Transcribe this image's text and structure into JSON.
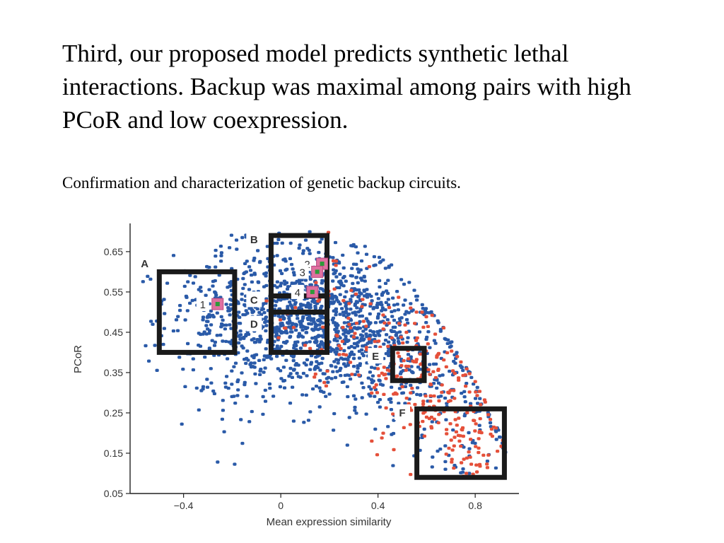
{
  "slide": {
    "title": "Third, our proposed model predicts synthetic lethal interactions. Backup was maximal among pairs with high PCoR and low coexpression.",
    "subtitle": "Confirmation and characterization of genetic backup circuits."
  },
  "colors": {
    "blue": "#2a5aa8",
    "red": "#e5503a",
    "pink": "#e070a0",
    "green": "#2e9a3a",
    "box": "#1a1a1a"
  },
  "chart_data": {
    "type": "scatter",
    "xlabel": "Mean expression similarity",
    "ylabel": "PCoR",
    "xlim": [
      -0.62,
      0.98
    ],
    "ylim": [
      0.05,
      0.72
    ],
    "xticks": [
      -0.4,
      0,
      0.4,
      0.8
    ],
    "xtick_labels": [
      "−0.4",
      "0",
      "0.4",
      "0.8"
    ],
    "yticks": [
      0.05,
      0.15,
      0.25,
      0.35,
      0.45,
      0.55,
      0.65
    ],
    "ytick_labels": [
      "0.05",
      "0.15",
      "0.25",
      "0.35",
      "0.45",
      "0.55",
      "0.65"
    ],
    "regions": [
      {
        "label": "A",
        "x0": -0.5,
        "x1": -0.19,
        "y0": 0.4,
        "y1": 0.6,
        "label_x": -0.56,
        "label_y": 0.62
      },
      {
        "label": "B",
        "x0": -0.04,
        "x1": 0.19,
        "y0": 0.54,
        "y1": 0.69,
        "label_x": -0.11,
        "label_y": 0.68
      },
      {
        "label": "C",
        "x0": -0.04,
        "x1": 0.19,
        "y0": 0.5,
        "y1": 0.54,
        "label_x": -0.11,
        "label_y": 0.53
      },
      {
        "label": "D",
        "x0": -0.04,
        "x1": 0.19,
        "y0": 0.4,
        "y1": 0.5,
        "label_x": -0.11,
        "label_y": 0.47
      },
      {
        "label": "E",
        "x0": 0.46,
        "x1": 0.59,
        "y0": 0.33,
        "y1": 0.41,
        "label_x": 0.39,
        "label_y": 0.39
      },
      {
        "label": "F",
        "x0": 0.56,
        "x1": 0.92,
        "y0": 0.09,
        "y1": 0.26,
        "label_x": 0.5,
        "label_y": 0.25
      }
    ],
    "highlighted_pairs": [
      {
        "label": "1",
        "x": -0.26,
        "y": 0.52
      },
      {
        "label": "2",
        "x": 0.17,
        "y": 0.62
      },
      {
        "label": "3",
        "x": 0.15,
        "y": 0.6
      },
      {
        "label": "4",
        "x": 0.13,
        "y": 0.55
      }
    ],
    "series": [
      {
        "color": "blue",
        "clusters": [
          {
            "cx": 0.12,
            "cy": 0.5,
            "sx": 0.2,
            "sy": 0.09,
            "n": 900
          },
          {
            "cx": 0.42,
            "cy": 0.42,
            "sx": 0.18,
            "sy": 0.08,
            "n": 320
          },
          {
            "cx": -0.28,
            "cy": 0.48,
            "sx": 0.14,
            "sy": 0.08,
            "n": 150
          },
          {
            "cx": 0.7,
            "cy": 0.24,
            "sx": 0.14,
            "sy": 0.09,
            "n": 130
          },
          {
            "cx": -0.05,
            "cy": 0.34,
            "sx": 0.18,
            "sy": 0.08,
            "n": 80
          }
        ]
      },
      {
        "color": "red",
        "clusters": [
          {
            "cx": 0.62,
            "cy": 0.3,
            "sx": 0.14,
            "sy": 0.07,
            "n": 150
          },
          {
            "cx": 0.35,
            "cy": 0.44,
            "sx": 0.16,
            "sy": 0.06,
            "n": 90
          },
          {
            "cx": 0.78,
            "cy": 0.18,
            "sx": 0.08,
            "sy": 0.05,
            "n": 60
          },
          {
            "cx": 0.12,
            "cy": 0.52,
            "sx": 0.1,
            "sy": 0.07,
            "n": 25
          }
        ]
      }
    ]
  }
}
